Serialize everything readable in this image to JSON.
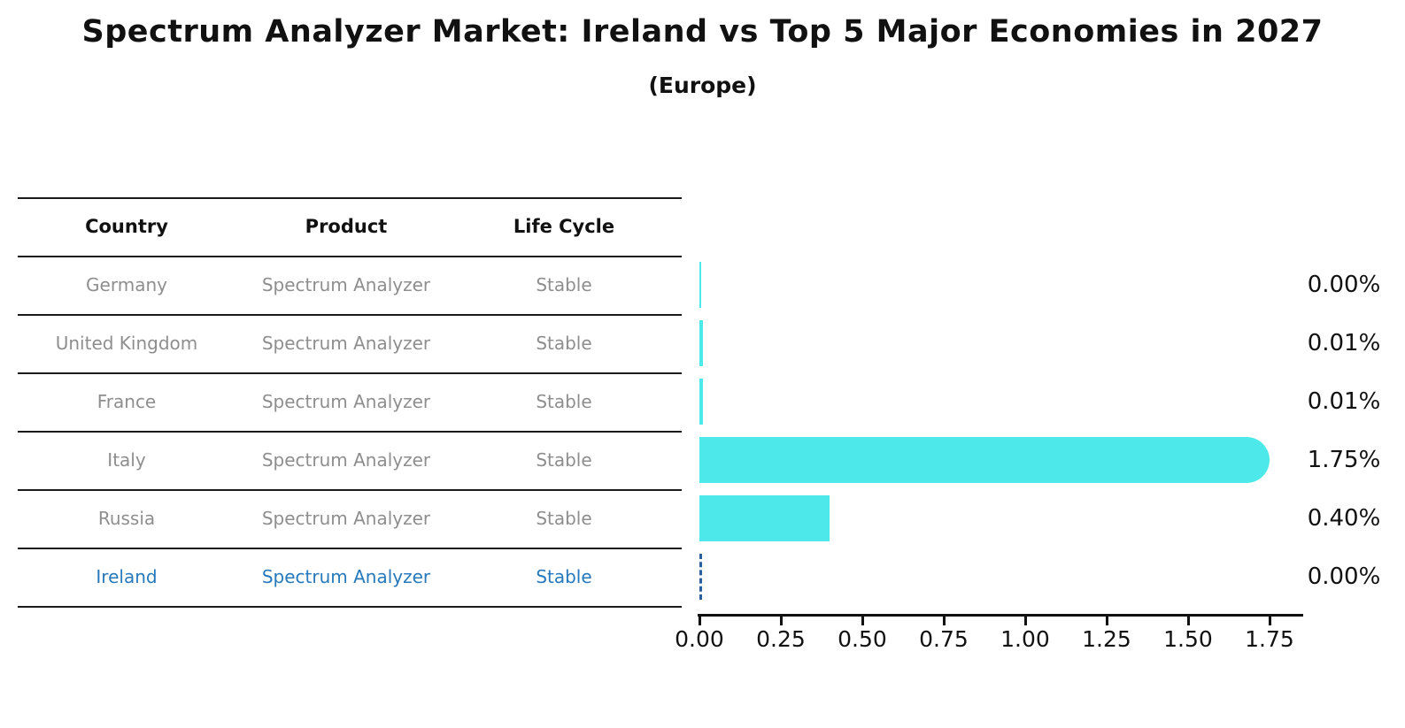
{
  "header": {
    "title": "Spectrum Analyzer Market: Ireland vs Top 5 Major Economies in 2027",
    "subtitle": "(Europe)"
  },
  "table": {
    "headers": [
      "Country",
      "Product",
      "Life Cycle"
    ],
    "rows": [
      {
        "country": "Germany",
        "product": "Spectrum Analyzer",
        "life_cycle": "Stable",
        "highlight": false
      },
      {
        "country": "United Kingdom",
        "product": "Spectrum Analyzer",
        "life_cycle": "Stable",
        "highlight": false
      },
      {
        "country": "France",
        "product": "Spectrum Analyzer",
        "life_cycle": "Stable",
        "highlight": false
      },
      {
        "country": "Italy",
        "product": "Spectrum Analyzer",
        "life_cycle": "Stable",
        "highlight": false
      },
      {
        "country": "Russia",
        "product": "Spectrum Analyzer",
        "life_cycle": "Stable",
        "highlight": false
      },
      {
        "country": "Ireland",
        "product": "Spectrum Analyzer",
        "life_cycle": "Stable",
        "highlight": true
      }
    ]
  },
  "chart_data": {
    "type": "bar",
    "orientation": "horizontal",
    "title": "Spectrum Analyzer Market: Ireland vs Top 5 Major Economies in 2027",
    "subtitle": "(Europe)",
    "categories": [
      "Germany",
      "United Kingdom",
      "France",
      "Italy",
      "Russia",
      "Ireland"
    ],
    "values": [
      0.0,
      0.01,
      0.01,
      1.75,
      0.4,
      0.0
    ],
    "value_labels": [
      "0.00%",
      "0.01%",
      "0.01%",
      "1.75%",
      "0.40%",
      "0.00%"
    ],
    "xlim": [
      0,
      1.85
    ],
    "x_tick_labels": [
      "0.00",
      "0.25",
      "0.50",
      "0.75",
      "1.00",
      "1.25",
      "1.50",
      "1.75"
    ],
    "grid": false,
    "legend": false,
    "bar_color": "#4de8e9",
    "highlight_index": 5,
    "highlight_style": "dashed-outline",
    "highlight_color": "#2a5f9e"
  },
  "colors": {
    "bar_cyan": "#4de8e9",
    "ireland_blue": "#2679bc",
    "table_text_gray": "#8e8e8e",
    "text_black": "#111111"
  }
}
